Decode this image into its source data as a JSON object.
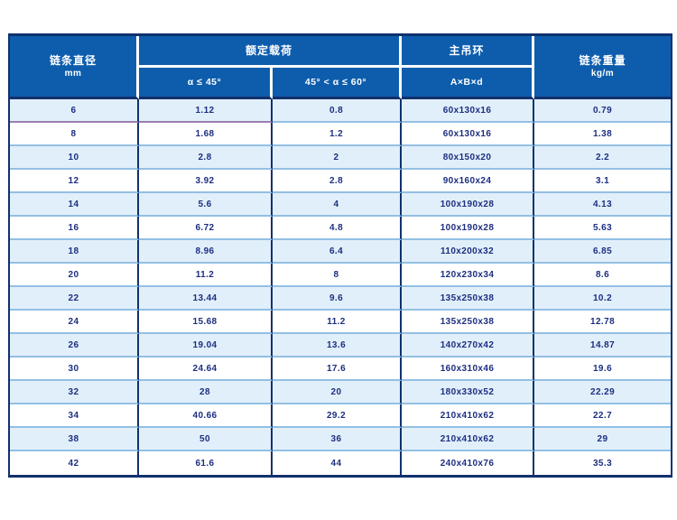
{
  "colors": {
    "header_blue": "#0e5dad",
    "outer_border_navy": "#10316e",
    "row_light_blue": "#e1effa",
    "row_white": "#ffffff",
    "row_separator_blue": "#93bfe3",
    "first_row_separator_purple": "#9c7fb0",
    "data_text_navy": "#1c2e80",
    "header_text_white": "#ffffff",
    "page_background": "#ffffff"
  },
  "table": {
    "headers": {
      "diameter_line1": "链条直径",
      "diameter_line2": "mm",
      "rated_load": "额定载荷",
      "alpha_le_45": "α ≤ 45°",
      "alpha_45_60": "45° < α ≤ 60°",
      "main_ring": "主吊环",
      "ring_dims": "A×B×d",
      "weight_line1": "链条重量",
      "weight_line2": "kg/m"
    },
    "rows": [
      [
        "6",
        "1.12",
        "0.8",
        "60x130x16",
        "0.79"
      ],
      [
        "8",
        "1.68",
        "1.2",
        "60x130x16",
        "1.38"
      ],
      [
        "10",
        "2.8",
        "2",
        "80x150x20",
        "2.2"
      ],
      [
        "12",
        "3.92",
        "2.8",
        "90x160x24",
        "3.1"
      ],
      [
        "14",
        "5.6",
        "4",
        "100x190x28",
        "4.13"
      ],
      [
        "16",
        "6.72",
        "4.8",
        "100x190x28",
        "5.63"
      ],
      [
        "18",
        "8.96",
        "6.4",
        "110x200x32",
        "6.85"
      ],
      [
        "20",
        "11.2",
        "8",
        "120x230x34",
        "8.6"
      ],
      [
        "22",
        "13.44",
        "9.6",
        "135x250x38",
        "10.2"
      ],
      [
        "24",
        "15.68",
        "11.2",
        "135x250x38",
        "12.78"
      ],
      [
        "26",
        "19.04",
        "13.6",
        "140x270x42",
        "14.87"
      ],
      [
        "30",
        "24.64",
        "17.6",
        "160x310x46",
        "19.6"
      ],
      [
        "32",
        "28",
        "20",
        "180x330x52",
        "22.29"
      ],
      [
        "34",
        "40.66",
        "29.2",
        "210x410x62",
        "22.7"
      ],
      [
        "38",
        "50",
        "36",
        "210x410x62",
        "29"
      ],
      [
        "42",
        "61.6",
        "44",
        "240x410x76",
        "35.3"
      ]
    ]
  }
}
